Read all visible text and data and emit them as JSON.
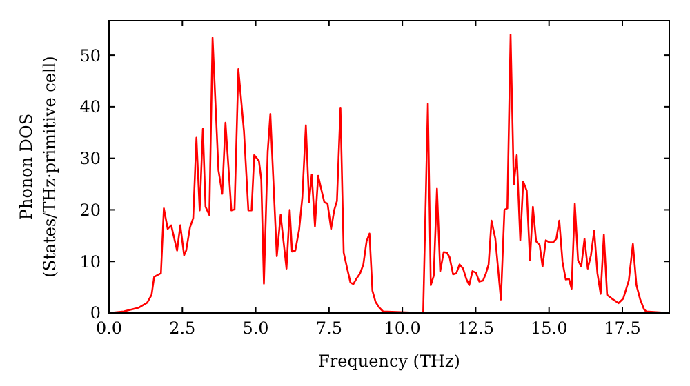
{
  "chart_data": {
    "type": "line",
    "xlabel": "Frequency (THz)",
    "ylabel": "Phonon DOS\n(States/THz·primitive cell)",
    "xlim": [
      0,
      19.1
    ],
    "ylim": [
      0,
      56.7
    ],
    "xticks": [
      {
        "value": 0,
        "label": "0.0"
      },
      {
        "value": 2.5,
        "label": "2.5"
      },
      {
        "value": 5,
        "label": "5.0"
      },
      {
        "value": 7.5,
        "label": "7.5"
      },
      {
        "value": 10,
        "label": "10.0"
      },
      {
        "value": 12.5,
        "label": "12.5"
      },
      {
        "value": 15,
        "label": "15.0"
      },
      {
        "value": 17.5,
        "label": "17.5"
      }
    ],
    "yticks": [
      0,
      10,
      20,
      30,
      40,
      50
    ],
    "grid": false,
    "line_style": "solid",
    "marker": "none",
    "series": [
      {
        "color": "#ff0000",
        "x": [
          0,
          0.5,
          1.0,
          1.3,
          1.45,
          1.54,
          1.77,
          1.87,
          2.0,
          2.12,
          2.32,
          2.43,
          2.56,
          2.63,
          2.76,
          2.87,
          2.98,
          3.09,
          3.2,
          3.29,
          3.42,
          3.53,
          3.73,
          3.86,
          3.97,
          4.17,
          4.28,
          4.41,
          4.6,
          4.75,
          4.86,
          4.95,
          5.11,
          5.19,
          5.28,
          5.41,
          5.5,
          5.72,
          5.85,
          6.05,
          6.16,
          6.24,
          6.35,
          6.48,
          6.59,
          6.71,
          6.82,
          6.91,
          7.02,
          7.13,
          7.23,
          7.34,
          7.45,
          7.57,
          7.68,
          7.77,
          7.89,
          8.0,
          8.12,
          8.23,
          8.33,
          8.43,
          8.56,
          8.67,
          8.78,
          8.88,
          8.98,
          9.09,
          9.22,
          9.34,
          10.71,
          10.87,
          10.97,
          11.07,
          11.18,
          11.29,
          11.41,
          11.52,
          11.61,
          11.73,
          11.84,
          11.95,
          12.07,
          12.18,
          12.28,
          12.39,
          12.51,
          12.62,
          12.75,
          12.85,
          12.94,
          13.04,
          13.17,
          13.36,
          13.48,
          13.58,
          13.69,
          13.8,
          13.9,
          14.02,
          14.12,
          14.24,
          14.35,
          14.45,
          14.56,
          14.68,
          14.78,
          14.89,
          15.02,
          15.14,
          15.25,
          15.35,
          15.46,
          15.57,
          15.68,
          15.77,
          15.88,
          15.99,
          16.1,
          16.21,
          16.32,
          16.43,
          16.54,
          16.65,
          16.76,
          16.87,
          16.98,
          17.14,
          17.37,
          17.53,
          17.72,
          17.86,
          17.98,
          18.11,
          18.24,
          18.31,
          19.1
        ],
        "values": [
          0,
          0.3,
          1,
          2,
          3.5,
          7.0,
          7.7,
          20.3,
          16.3,
          17.0,
          12.1,
          17.0,
          11.2,
          12.1,
          16.6,
          18.4,
          34,
          19.9,
          35.7,
          20.6,
          19,
          53.4,
          27.7,
          23.1,
          36.9,
          19.9,
          20.1,
          47.3,
          35.3,
          19.9,
          19.9,
          30.6,
          29.5,
          25.9,
          5.7,
          31.3,
          38.6,
          11,
          19,
          8.6,
          20,
          11.9,
          12.1,
          16.1,
          22.4,
          36.4,
          21.5,
          26.8,
          16.8,
          26.6,
          24.1,
          21.5,
          21.2,
          16.3,
          20,
          21.7,
          39.8,
          11.7,
          8.6,
          5.9,
          5.6,
          6.6,
          7.7,
          9.4,
          13.9,
          15.4,
          4.3,
          2.1,
          1,
          0.3,
          0,
          40.6,
          5.4,
          7.2,
          24.1,
          8.1,
          11.8,
          11.7,
          10.8,
          7.5,
          7.7,
          9.4,
          8.6,
          6.6,
          5.4,
          8.1,
          7.8,
          6.1,
          6.3,
          7.7,
          9.4,
          17.9,
          14.4,
          2.6,
          20,
          20.3,
          54,
          24.9,
          30.6,
          14.1,
          25.5,
          23.7,
          10.2,
          20.6,
          13.9,
          13.2,
          9.0,
          14.1,
          13.7,
          13.7,
          14.4,
          17.9,
          9.9,
          6.5,
          6.6,
          4.7,
          21.2,
          10.2,
          9.0,
          14.4,
          8.6,
          11.2,
          16.0,
          7.7,
          3.7,
          15.2,
          3.5,
          2.8,
          1.9,
          2.8,
          6.3,
          13.4,
          5.4,
          2.6,
          0.7,
          0.3,
          0
        ]
      }
    ]
  }
}
